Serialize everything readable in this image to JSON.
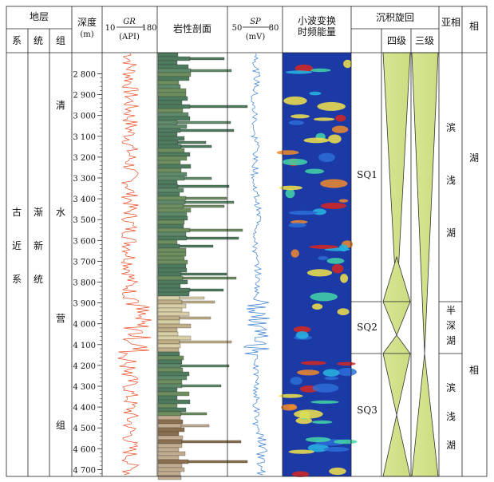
{
  "header": {
    "stratum": "地层",
    "system": "系",
    "series": "统",
    "formation": "组",
    "depth": "深度",
    "depth_unit": "(m)",
    "gr_min": "10",
    "gr_label": "GR",
    "gr_max": "180",
    "gr_unit": "(API)",
    "lithology": "岩性剖面",
    "sp_min": "50",
    "sp_label": "SP",
    "sp_max": "80",
    "sp_unit": "(mV)",
    "wavelet_line1": "小波变换",
    "wavelet_line2": "时频能量",
    "cycle": "沉积旋回",
    "fourth_order": "四级",
    "third_order": "三级",
    "subfacies": "亚相",
    "facies": "相"
  },
  "strata": {
    "system": [
      "古",
      "近",
      "系"
    ],
    "series": [
      "渐",
      "新",
      "统"
    ],
    "formation": [
      "清",
      "水",
      "营",
      "组"
    ]
  },
  "depth_ticks": [
    "2 800",
    "2 900",
    "3 000",
    "3 100",
    "3 200",
    "3 300",
    "3 400",
    "3 500",
    "3 600",
    "3 700",
    "3 800",
    "3 900",
    "4 000",
    "4 100",
    "4 200",
    "4 300",
    "4 400",
    "4 500",
    "4 600",
    "4 700"
  ],
  "sequences": [
    "SQ1",
    "SQ2",
    "SQ3"
  ],
  "subfacies": {
    "upper": [
      "滨",
      "浅",
      "湖"
    ],
    "middle": [
      "半",
      "深",
      "湖"
    ],
    "lower": [
      "滨",
      "浅",
      "湖"
    ]
  },
  "facies": [
    "湖",
    "相"
  ],
  "colors": {
    "gr_curve": "#e8502a",
    "sp_curve": "#3b7fd0",
    "cycle_fill": "#d4e58c",
    "mudstone": "#4e7a5e",
    "sandstone": "#a0794a",
    "siltstone": "#c2ab8f",
    "wavelet_bg": "#1a3aa8"
  }
}
